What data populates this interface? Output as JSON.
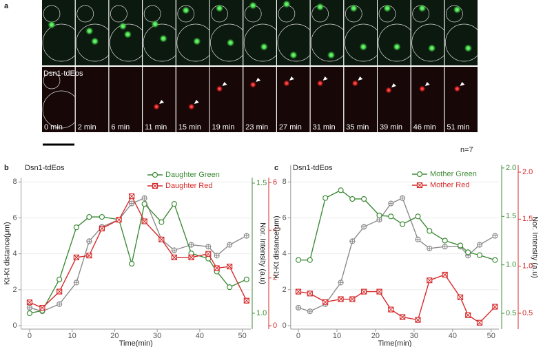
{
  "panel_a": {
    "label": "a",
    "protein": "Dsn1-tdEos",
    "n": "n=7",
    "time_labels": [
      "0 min",
      "2 min",
      "6 min",
      "11 min",
      "15 min",
      "19 min",
      "23 min",
      "27 min",
      "31 min",
      "35 min",
      "39 min",
      "46 min",
      "51 min"
    ]
  },
  "chart_data": [
    {
      "type": "line",
      "panel_label": "b",
      "title": "Dsn1-tdEos",
      "xlabel": "Time(min)",
      "ylabel": "Kt-Kt distance(μm)",
      "y2label": "Nor. Intensity (a.u)",
      "x": [
        0,
        3,
        7,
        11,
        14,
        17,
        21,
        24,
        27,
        31,
        34,
        38,
        42,
        44,
        47,
        51
      ],
      "xlim": [
        -2,
        52
      ],
      "xticks": [
        0,
        10,
        20,
        30,
        40,
        50
      ],
      "ylim": [
        -0.19,
        8.24
      ],
      "yticks": [
        0,
        2,
        4,
        6,
        8
      ],
      "y2lim": [
        0.939,
        1.521
      ],
      "y2ticks": [
        {
          "value": 1,
          "label": "1.0"
        },
        1.5
      ],
      "y3lim": [
        -0.14,
        6.2
      ],
      "y3ticks": [
        0,
        2,
        4,
        6
      ],
      "grid": true,
      "legend": "upper right",
      "series": [
        {
          "color": "#8c8c8c",
          "marker": "circle-plus",
          "values": [
            1.0,
            0.8,
            1.2,
            2.4,
            4.7,
            5.5,
            5.9,
            6.8,
            7.1,
            4.8,
            4.2,
            4.5,
            4.4,
            3.9,
            4.5,
            5.0
          ]
        },
        {
          "name": "Daughter Green",
          "color": "#3d8b37",
          "marker": "circle",
          "axis": "y2",
          "values": [
            1.0,
            1.01,
            1.13,
            1.33,
            1.37,
            1.37,
            1.36,
            1.19,
            1.42,
            1.35,
            1.42,
            1.23,
            1.21,
            1.16,
            1.1,
            1.13
          ]
        },
        {
          "name": "Daughter Red",
          "color": "#d62a2a",
          "marker": "square-x",
          "axis": "y3",
          "values": [
            0.98,
            0.75,
            1.43,
            2.86,
            2.94,
            4.07,
            4.44,
            5.42,
            4.37,
            3.61,
            2.86,
            2.86,
            3.01,
            2.41,
            2.48,
            1.05
          ]
        }
      ]
    },
    {
      "type": "line",
      "panel_label": "c",
      "title": "Dsn1-tdEos",
      "xlabel": "Time(min)",
      "ylabel": "Kt-Kt distance(μm)",
      "y2label": "Nor. Intensity (a.u)",
      "x": [
        0,
        3,
        7,
        11,
        14,
        17,
        21,
        24,
        27,
        31,
        34,
        38,
        42,
        44,
        47,
        51
      ],
      "xlim": [
        -2,
        52
      ],
      "xticks": [
        0,
        10,
        20,
        30,
        40,
        50
      ],
      "ylim": [
        -0.19,
        8.93
      ],
      "yticks": [
        0,
        2,
        4,
        6,
        8
      ],
      "y2lim": [
        0.337,
        2.028
      ],
      "y2ticks": [
        0.5,
        {
          "value": 1,
          "label": "1.0"
        },
        1.5,
        {
          "value": 2,
          "label": "2.0"
        }
      ],
      "y3lim": [
        0.332,
        2.073
      ],
      "y3ticks": [
        0.5,
        {
          "value": 1,
          "label": "1.0"
        },
        1.5,
        {
          "value": 2,
          "label": "2.0"
        }
      ],
      "grid": true,
      "legend": "upper right",
      "series": [
        {
          "color": "#8c8c8c",
          "marker": "circle-plus",
          "values": [
            1.0,
            0.8,
            1.2,
            2.4,
            4.7,
            5.5,
            5.9,
            6.8,
            7.1,
            4.8,
            4.3,
            4.4,
            4.4,
            3.9,
            4.5,
            5.0
          ]
        },
        {
          "name": "Mother Green",
          "color": "#3d8b37",
          "marker": "circle",
          "axis": "y2",
          "values": [
            1.05,
            1.05,
            1.69,
            1.77,
            1.68,
            1.68,
            1.51,
            1.5,
            1.42,
            1.5,
            1.35,
            1.25,
            1.2,
            1.13,
            1.1,
            1.05
          ]
        },
        {
          "name": "Mother Red",
          "color": "#d62a2a",
          "marker": "square-x",
          "axis": "y3",
          "values": [
            0.73,
            0.71,
            0.62,
            0.65,
            0.65,
            0.73,
            0.73,
            0.54,
            0.46,
            0.43,
            0.85,
            0.91,
            0.67,
            0.48,
            0.4,
            0.57
          ]
        }
      ]
    }
  ]
}
